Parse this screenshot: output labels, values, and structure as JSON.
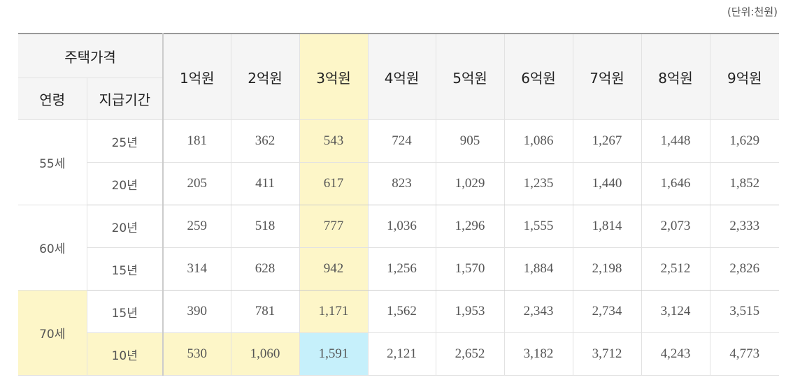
{
  "unit_label": "(단위:천원)",
  "header": {
    "house_price_label": "주택가격",
    "age_label": "연령",
    "period_label": "지급기간",
    "prices": [
      "1억원",
      "2억원",
      "3억원",
      "4억원",
      "5억원",
      "6억원",
      "7억원",
      "8억원",
      "9억원"
    ]
  },
  "groups": [
    {
      "age": "55세",
      "rows": [
        {
          "period": "25년",
          "values": [
            "181",
            "362",
            "543",
            "724",
            "905",
            "1,086",
            "1,267",
            "1,448",
            "1,629"
          ]
        },
        {
          "period": "20년",
          "values": [
            "205",
            "411",
            "617",
            "823",
            "1,029",
            "1,235",
            "1,440",
            "1,646",
            "1,852"
          ]
        }
      ]
    },
    {
      "age": "60세",
      "rows": [
        {
          "period": "20년",
          "values": [
            "259",
            "518",
            "777",
            "1,036",
            "1,296",
            "1,555",
            "1,814",
            "2,073",
            "2,333"
          ]
        },
        {
          "period": "15년",
          "values": [
            "314",
            "628",
            "942",
            "1,256",
            "1,570",
            "1,884",
            "2,198",
            "2,512",
            "2,826"
          ]
        }
      ]
    },
    {
      "age": "70세",
      "rows": [
        {
          "period": "15년",
          "values": [
            "390",
            "781",
            "1,171",
            "1,562",
            "1,953",
            "2,343",
            "2,734",
            "3,124",
            "3,515"
          ]
        },
        {
          "period": "10년",
          "values": [
            "530",
            "1,060",
            "1,591",
            "2,121",
            "2,652",
            "3,182",
            "3,712",
            "4,243",
            "4,773"
          ]
        }
      ]
    }
  ],
  "colors": {
    "highlight_yellow": "#fdf6c8",
    "highlight_blue": "#c6f0fb",
    "header_bg": "#f5f5f5"
  }
}
